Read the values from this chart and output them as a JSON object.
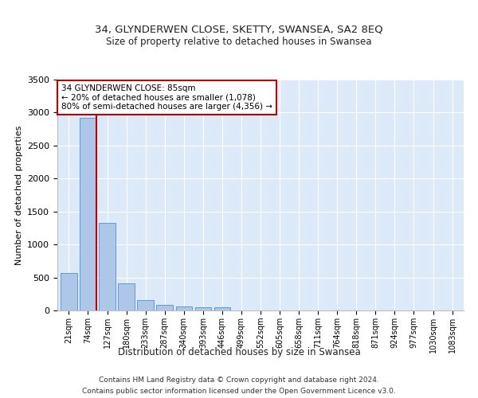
{
  "title": "34, GLYNDERWEN CLOSE, SKETTY, SWANSEA, SA2 8EQ",
  "subtitle": "Size of property relative to detached houses in Swansea",
  "xlabel": "Distribution of detached houses by size in Swansea",
  "ylabel": "Number of detached properties",
  "categories": [
    "21sqm",
    "74sqm",
    "127sqm",
    "180sqm",
    "233sqm",
    "287sqm",
    "340sqm",
    "393sqm",
    "446sqm",
    "499sqm",
    "552sqm",
    "605sqm",
    "658sqm",
    "711sqm",
    "764sqm",
    "818sqm",
    "871sqm",
    "924sqm",
    "977sqm",
    "1030sqm",
    "1083sqm"
  ],
  "bar_values": [
    570,
    2920,
    1330,
    415,
    155,
    80,
    55,
    50,
    45,
    0,
    0,
    0,
    0,
    0,
    0,
    0,
    0,
    0,
    0,
    0,
    0
  ],
  "bar_color": "#aec6e8",
  "bar_edge_color": "#5b9bd5",
  "highlight_line_color": "#c00000",
  "annotation_title": "34 GLYNDERWEN CLOSE: 85sqm",
  "annotation_line1": "← 20% of detached houses are smaller (1,078)",
  "annotation_line2": "80% of semi-detached houses are larger (4,356) →",
  "annotation_box_color": "#c00000",
  "ylim": [
    0,
    3500
  ],
  "yticks": [
    0,
    500,
    1000,
    1500,
    2000,
    2500,
    3000,
    3500
  ],
  "footer_line1": "Contains HM Land Registry data © Crown copyright and database right 2024.",
  "footer_line2": "Contains public sector information licensed under the Open Government Licence v3.0.",
  "bg_color": "#dce9f8",
  "grid_color": "#ffffff"
}
